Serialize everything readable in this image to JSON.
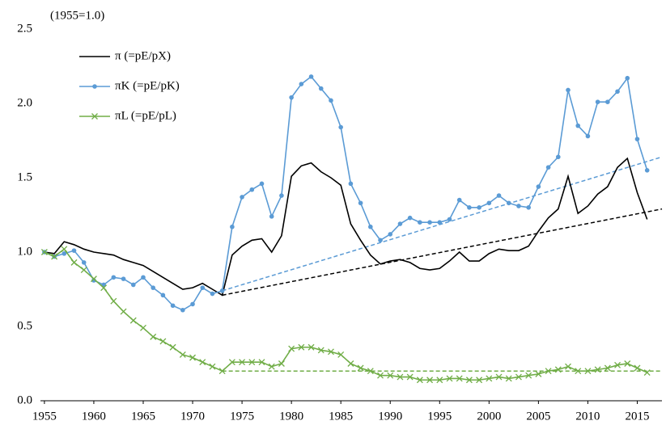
{
  "chart_data": {
    "type": "line",
    "annotation": "(1955=1.0)",
    "x": [
      1955,
      1956,
      1957,
      1958,
      1959,
      1960,
      1961,
      1962,
      1963,
      1964,
      1965,
      1966,
      1967,
      1968,
      1969,
      1970,
      1971,
      1972,
      1973,
      1974,
      1975,
      1976,
      1977,
      1978,
      1979,
      1980,
      1981,
      1982,
      1983,
      1984,
      1985,
      1986,
      1987,
      1988,
      1989,
      1990,
      1991,
      1992,
      1993,
      1994,
      1995,
      1996,
      1997,
      1998,
      1999,
      2000,
      2001,
      2002,
      2003,
      2004,
      2005,
      2006,
      2007,
      2008,
      2009,
      2010,
      2011,
      2012,
      2013,
      2014,
      2015,
      2016
    ],
    "series": [
      {
        "name": "π (=pE/pX)",
        "color": "#000000",
        "marker": "none",
        "values": [
          1.0,
          0.99,
          1.07,
          1.05,
          1.02,
          1.0,
          0.99,
          0.98,
          0.95,
          0.93,
          0.91,
          0.87,
          0.83,
          0.79,
          0.75,
          0.76,
          0.79,
          0.75,
          0.71,
          0.98,
          1.04,
          1.08,
          1.09,
          1.0,
          1.11,
          1.51,
          1.58,
          1.6,
          1.54,
          1.5,
          1.45,
          1.19,
          1.08,
          0.98,
          0.92,
          0.94,
          0.95,
          0.93,
          0.89,
          0.88,
          0.89,
          0.94,
          1.0,
          0.94,
          0.94,
          0.99,
          1.02,
          1.01,
          1.01,
          1.04,
          1.14,
          1.23,
          1.29,
          1.51,
          1.26,
          1.31,
          1.39,
          1.44,
          1.57,
          1.63,
          1.4,
          1.22
        ]
      },
      {
        "name": "πK (=pE/pK)",
        "color": "#5b9bd5",
        "marker": "circle",
        "values": [
          1.0,
          0.97,
          0.99,
          1.01,
          0.93,
          0.81,
          0.78,
          0.83,
          0.82,
          0.78,
          0.83,
          0.76,
          0.71,
          0.64,
          0.61,
          0.65,
          0.76,
          0.72,
          0.74,
          1.17,
          1.37,
          1.42,
          1.46,
          1.24,
          1.38,
          2.04,
          2.13,
          2.18,
          2.1,
          2.02,
          1.84,
          1.46,
          1.33,
          1.17,
          1.08,
          1.12,
          1.19,
          1.23,
          1.2,
          1.2,
          1.2,
          1.22,
          1.35,
          1.3,
          1.3,
          1.33,
          1.38,
          1.33,
          1.31,
          1.3,
          1.44,
          1.57,
          1.64,
          2.09,
          1.85,
          1.78,
          2.01,
          2.01,
          2.08,
          2.17,
          1.76,
          1.55
        ]
      },
      {
        "name": "πL (=pE/pL)",
        "color": "#70ad47",
        "marker": "x",
        "values": [
          1.0,
          0.97,
          1.02,
          0.93,
          0.88,
          0.82,
          0.76,
          0.67,
          0.6,
          0.54,
          0.49,
          0.43,
          0.4,
          0.36,
          0.31,
          0.29,
          0.26,
          0.23,
          0.2,
          0.26,
          0.26,
          0.26,
          0.26,
          0.23,
          0.25,
          0.35,
          0.36,
          0.36,
          0.34,
          0.33,
          0.31,
          0.25,
          0.22,
          0.2,
          0.17,
          0.17,
          0.16,
          0.16,
          0.14,
          0.14,
          0.14,
          0.15,
          0.15,
          0.14,
          0.14,
          0.15,
          0.16,
          0.15,
          0.16,
          0.17,
          0.18,
          0.2,
          0.21,
          0.23,
          0.2,
          0.2,
          0.21,
          0.22,
          0.24,
          0.25,
          0.22,
          0.19
        ]
      }
    ],
    "trend_lines": [
      {
        "color": "#000000",
        "style": "dashed",
        "x": [
          1973,
          2017.5
        ],
        "values": [
          0.71,
          1.29
        ]
      },
      {
        "color": "#5b9bd5",
        "style": "dashed",
        "x": [
          1973,
          2017.5
        ],
        "values": [
          0.74,
          1.64
        ]
      },
      {
        "color": "#70ad47",
        "style": "dashed",
        "x": [
          1973,
          2017.5
        ],
        "values": [
          0.2,
          0.2
        ]
      }
    ],
    "xlim": [
      1954.6,
      2017.5
    ],
    "xticks": [
      1955,
      1960,
      1965,
      1970,
      1975,
      1980,
      1985,
      1990,
      1995,
      2000,
      2005,
      2010,
      2015
    ],
    "ylim": [
      0,
      2.5
    ],
    "yticks": [
      {
        "value": 0,
        "label": "0.0"
      },
      0.5,
      {
        "value": 1,
        "label": "1.0"
      },
      1.5,
      {
        "value": 2,
        "label": "2.0"
      },
      2.5
    ],
    "grid": false,
    "legend": "upper left"
  }
}
